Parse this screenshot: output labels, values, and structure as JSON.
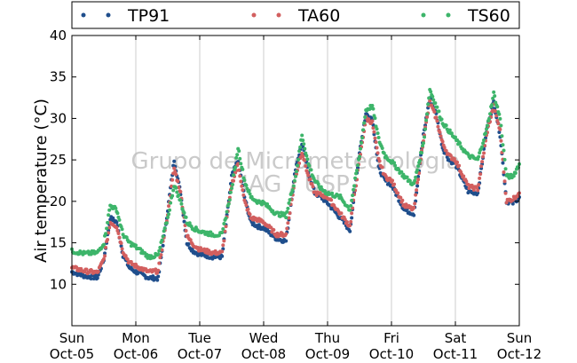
{
  "chart_data": {
    "type": "scatter",
    "ylabel": "Air temperature (°C)",
    "xlabel": "",
    "ylim": [
      5,
      40
    ],
    "yticks": [
      10,
      15,
      20,
      25,
      30,
      35,
      40
    ],
    "xlim": [
      0,
      7
    ],
    "grid": "vertical",
    "legend_position": "top",
    "xticks": [
      {
        "day": "Sun",
        "date": "Oct-05"
      },
      {
        "day": "Mon",
        "date": "Oct-06"
      },
      {
        "day": "Tue",
        "date": "Oct-07"
      },
      {
        "day": "Wed",
        "date": "Oct-08"
      },
      {
        "day": "Thu",
        "date": "Oct-09"
      },
      {
        "day": "Fri",
        "date": "Oct-10"
      },
      {
        "day": "Sat",
        "date": "Oct-11"
      },
      {
        "day": "Sun",
        "date": "Oct-12"
      }
    ],
    "watermark": [
      "Grupo de Micrometeorologia",
      "IAG / USP"
    ],
    "series": [
      {
        "name": "TP91",
        "color": "#1f4e8c",
        "x": [
          0,
          0.2,
          0.4,
          0.5,
          0.6,
          0.7,
          0.8,
          0.9,
          1.0,
          1.2,
          1.35,
          1.5,
          1.6,
          1.7,
          1.8,
          1.9,
          2.0,
          2.2,
          2.35,
          2.5,
          2.6,
          2.7,
          2.8,
          2.9,
          3.0,
          3.2,
          3.35,
          3.5,
          3.6,
          3.7,
          3.8,
          3.9,
          4.0,
          4.2,
          4.35,
          4.5,
          4.6,
          4.7,
          4.8,
          4.9,
          5.0,
          5.2,
          5.35,
          5.5,
          5.6,
          5.7,
          5.8,
          5.9,
          6.0,
          6.2,
          6.35,
          6.5,
          6.6,
          6.7,
          6.8,
          6.9,
          7.0
        ],
        "y": [
          11.5,
          11.0,
          10.8,
          13.0,
          18.0,
          17.5,
          13.5,
          12.0,
          11.5,
          10.8,
          10.7,
          19.0,
          25.0,
          21.0,
          15.0,
          14.0,
          13.6,
          13.3,
          13.3,
          23.0,
          25.0,
          20.5,
          17.5,
          17.0,
          16.8,
          15.5,
          15.2,
          24.0,
          27.0,
          23.5,
          21.0,
          20.5,
          19.8,
          18.0,
          16.5,
          26.0,
          30.5,
          30.0,
          24.0,
          22.5,
          22.0,
          19.0,
          18.5,
          28.0,
          32.5,
          30.5,
          26.5,
          25.0,
          24.5,
          21.2,
          21.0,
          29.0,
          32.0,
          28.0,
          20.0,
          19.8,
          20.5
        ]
      },
      {
        "name": "TA60",
        "color": "#d25f5f",
        "x": [
          0,
          0.2,
          0.4,
          0.5,
          0.6,
          0.7,
          0.8,
          0.9,
          1.0,
          1.2,
          1.35,
          1.5,
          1.6,
          1.7,
          1.8,
          1.9,
          2.0,
          2.2,
          2.35,
          2.5,
          2.6,
          2.7,
          2.8,
          2.9,
          3.0,
          3.2,
          3.35,
          3.5,
          3.6,
          3.7,
          3.8,
          3.9,
          4.0,
          4.2,
          4.35,
          4.5,
          4.6,
          4.7,
          4.8,
          4.9,
          5.0,
          5.2,
          5.35,
          5.5,
          5.6,
          5.7,
          5.8,
          5.9,
          6.0,
          6.2,
          6.35,
          6.5,
          6.6,
          6.7,
          6.8,
          6.9,
          7.0
        ],
        "y": [
          12.0,
          11.6,
          11.4,
          13.0,
          17.5,
          17.0,
          14.0,
          12.6,
          12.2,
          11.5,
          11.6,
          18.5,
          24.0,
          21.0,
          15.8,
          14.8,
          14.2,
          13.8,
          13.8,
          22.0,
          24.5,
          20.0,
          18.0,
          17.8,
          17.5,
          16.0,
          16.0,
          23.0,
          26.0,
          23.0,
          21.0,
          20.8,
          20.5,
          18.5,
          17.0,
          25.0,
          30.0,
          29.5,
          25.0,
          23.0,
          22.5,
          19.5,
          19.0,
          27.5,
          32.0,
          30.0,
          27.0,
          25.5,
          25.0,
          21.8,
          21.5,
          28.5,
          31.5,
          28.5,
          20.0,
          20.3,
          21.0
        ]
      },
      {
        "name": "TS60",
        "color": "#3db56a",
        "x": [
          0,
          0.2,
          0.4,
          0.5,
          0.6,
          0.7,
          0.8,
          0.9,
          1.0,
          1.2,
          1.35,
          1.5,
          1.6,
          1.7,
          1.8,
          1.9,
          2.0,
          2.2,
          2.35,
          2.5,
          2.6,
          2.7,
          2.8,
          2.9,
          3.0,
          3.2,
          3.35,
          3.5,
          3.6,
          3.7,
          3.8,
          3.9,
          4.0,
          4.2,
          4.35,
          4.5,
          4.6,
          4.7,
          4.8,
          4.9,
          5.0,
          5.2,
          5.35,
          5.5,
          5.6,
          5.7,
          5.8,
          5.9,
          6.0,
          6.2,
          6.35,
          6.5,
          6.6,
          6.7,
          6.8,
          6.9,
          7.0
        ],
        "y": [
          14.0,
          13.7,
          13.8,
          15.0,
          19.5,
          19.0,
          16.0,
          15.0,
          14.5,
          13.3,
          13.5,
          18.0,
          22.0,
          20.0,
          17.5,
          16.8,
          16.4,
          16.0,
          16.0,
          21.5,
          26.5,
          22.5,
          20.5,
          20.0,
          19.8,
          18.5,
          18.3,
          23.0,
          28.0,
          24.5,
          22.5,
          21.5,
          21.0,
          20.5,
          19.0,
          25.5,
          31.0,
          31.5,
          27.5,
          25.5,
          24.8,
          23.0,
          22.0,
          27.0,
          33.5,
          31.5,
          29.5,
          28.5,
          27.5,
          25.5,
          25.0,
          29.0,
          33.0,
          30.0,
          23.0,
          23.0,
          24.5
        ]
      }
    ]
  }
}
